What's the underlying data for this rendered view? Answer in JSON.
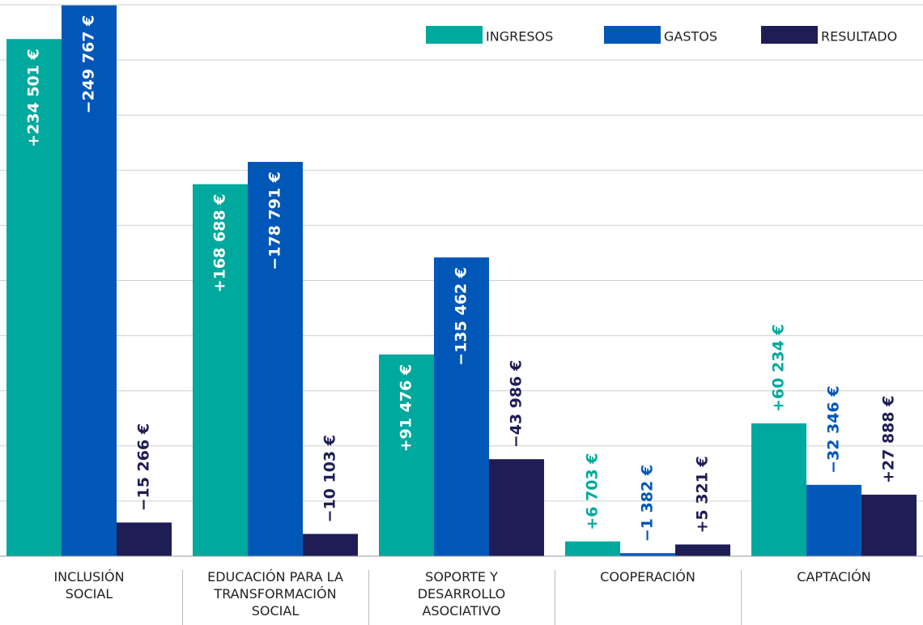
{
  "chart_data": {
    "type": "bar",
    "categories": [
      "INCLUSIÓN\nSOCIAL",
      "EDUCACIÓN PARA LA\nTRANSFORMACIÓN\nSOCIAL",
      "SOPORTE Y\nDESARROLLO\nASOCIATIVO",
      "COOPERACIÓN",
      "CAPTACIÓN"
    ],
    "series": [
      {
        "name": "INGRESOS",
        "color": "#00a99d",
        "values": [
          234501,
          168688,
          91476,
          6703,
          60234
        ],
        "value_labels": [
          "+234 501 €",
          "+168 688 €",
          "+91 476 €",
          "+6 703 €",
          "+60 234 €"
        ]
      },
      {
        "name": "GASTOS",
        "color": "#0057b8",
        "values": [
          -249767,
          -178791,
          -135462,
          -1382,
          -32346
        ],
        "value_labels": [
          "−249 767 €",
          "−178 791 €",
          "−135 462 €",
          "−1 382 €",
          "−32 346 €"
        ]
      },
      {
        "name": "RESULTADO",
        "color": "#1f1d55",
        "values": [
          -15266,
          -10103,
          -43986,
          5321,
          27888
        ],
        "value_labels": [
          "−15 266 €",
          "−10 103 €",
          "−43 986 €",
          "+5 321 €",
          "+27 888 €"
        ]
      }
    ],
    "ylim": [
      0,
      250000
    ],
    "yticks": [
      0,
      25000,
      50000,
      75000,
      100000,
      125000,
      150000,
      175000,
      200000,
      225000,
      250000
    ],
    "grid": true,
    "legend": "top-right"
  }
}
